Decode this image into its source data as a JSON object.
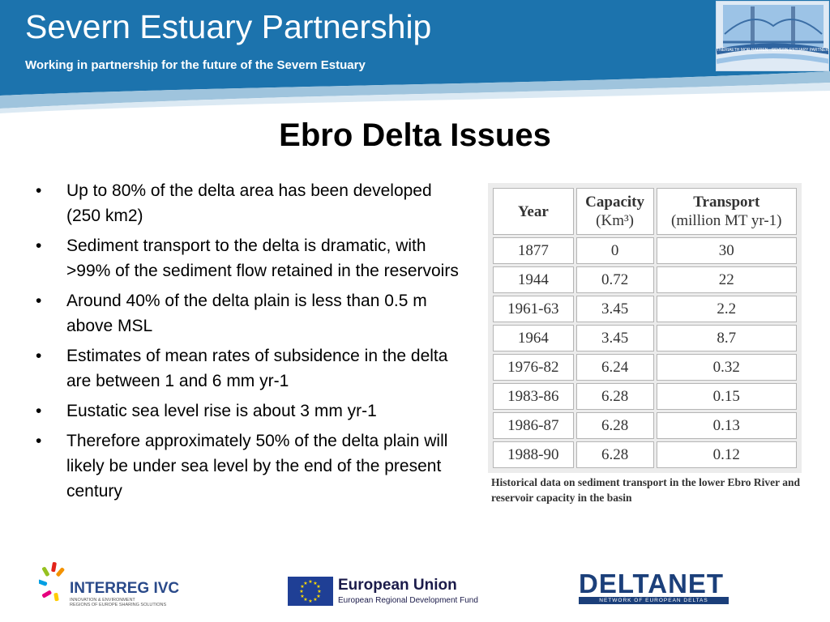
{
  "header": {
    "title": "Severn Estuary Partnership",
    "subtitle": "Working in partnership for the future of the Severn Estuary",
    "logo_text": "PARTNERIAETH MOR HAFREN · SEVERN ESTUARY PARTNERSHIP",
    "bg_color": "#1c73ad",
    "accent_color": "#9fc4dd"
  },
  "slide": {
    "title": "Ebro Delta Issues",
    "bullets": [
      "Up to 80% of the delta area has been developed (250 km2)",
      "Sediment transport to the delta is dramatic, with >99% of the sediment flow retained in the reservoirs",
      "Around 40% of the delta plain is less than 0.5 m above MSL",
      "Estimates of mean rates of subsidence in the delta are between 1 and 6 mm yr-1",
      "Eustatic sea level rise is about 3 mm yr-1",
      "Therefore approximately 50% of the delta plain will likely be under sea level by the end of the present century"
    ]
  },
  "table": {
    "headers": [
      {
        "main": "Year",
        "sub": ""
      },
      {
        "main": "Capacity",
        "sub": "(Km³)"
      },
      {
        "main": "Transport",
        "sub": "(million MT yr-1)"
      }
    ],
    "rows": [
      [
        "1877",
        "0",
        "30"
      ],
      [
        "1944",
        "0.72",
        "22"
      ],
      [
        "1961-63",
        "3.45",
        "2.2"
      ],
      [
        "1964",
        "3.45",
        "8.7"
      ],
      [
        "1976-82",
        "6.24",
        "0.32"
      ],
      [
        "1983-86",
        "6.28",
        "0.15"
      ],
      [
        "1986-87",
        "6.28",
        "0.13"
      ],
      [
        "1988-90",
        "6.28",
        "0.12"
      ]
    ],
    "caption": "Historical data on sediment transport in the lower Ebro River and reservoir capacity in the basin"
  },
  "footer": {
    "interreg": {
      "name": "INTERREG IVC",
      "tagline_1": "INNOVATION & ENVIRONMENT",
      "tagline_2": "REGIONS OF EUROPE SHARING SOLUTIONS"
    },
    "eu": {
      "name": "European Union",
      "fund": "European Regional Development Fund",
      "flag_color": "#1f3f95",
      "star_color": "#ffdd00"
    },
    "deltanet": {
      "name": "DELTANET",
      "tagline": "NETWORK OF EUROPEAN DELTAS"
    }
  }
}
